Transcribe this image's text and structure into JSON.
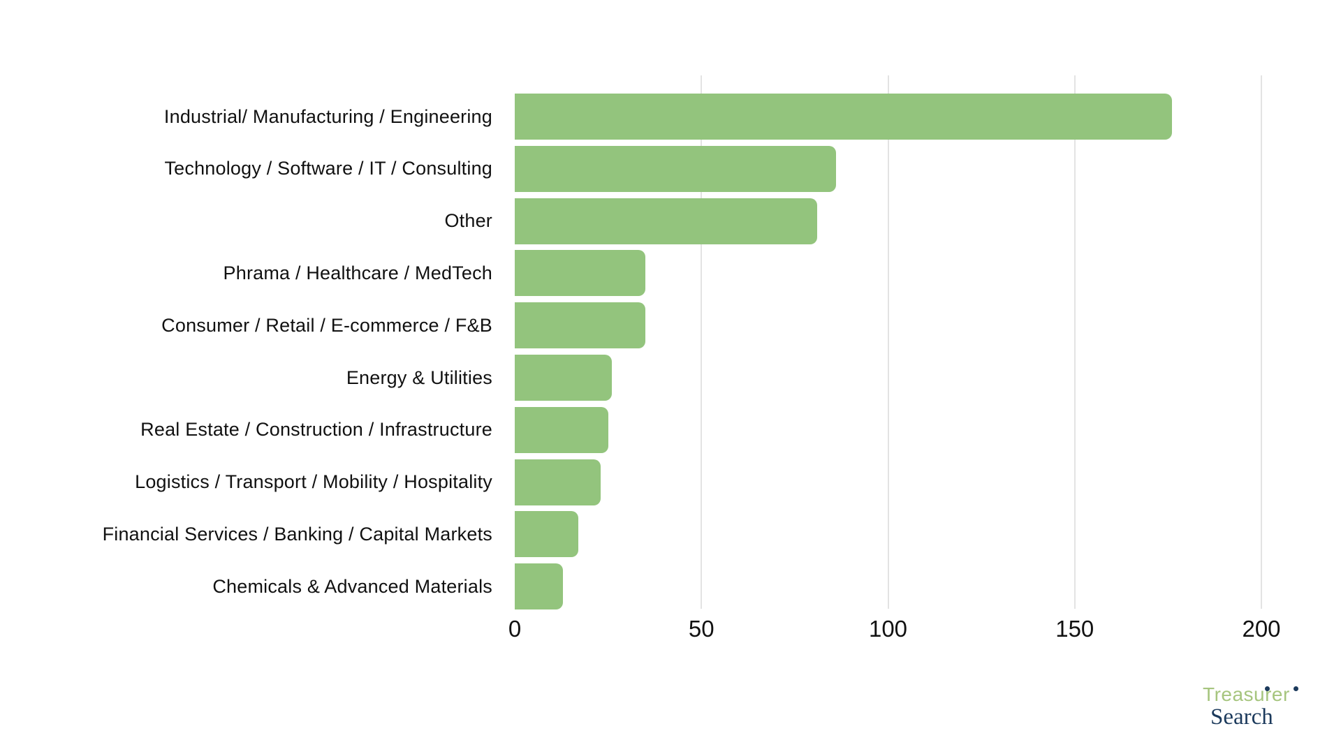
{
  "chart_data": {
    "type": "bar",
    "orientation": "horizontal",
    "title": "",
    "xlabel": "",
    "ylabel": "",
    "categories": [
      "Industrial/ Manufacturing / Engineering",
      "Technology / Software / IT / Consulting",
      "Other",
      "Phrama / Healthcare / MedTech",
      "Consumer / Retail / E-commerce / F&B",
      "Energy & Utilities",
      "Real Estate / Construction / Infrastructure",
      "Logistics / Transport / Mobility / Hospitality",
      "Financial Services / Banking / Capital Markets",
      "Chemicals & Advanced Materials"
    ],
    "values": [
      176,
      86,
      81,
      35,
      35,
      26,
      25,
      23,
      17,
      13
    ],
    "xlim": [
      0,
      200
    ],
    "x_ticks": [
      0,
      50,
      100,
      150,
      200
    ],
    "grid": "vertical-only",
    "legend": "none",
    "bar_color": "#93c47d",
    "gridline_color": "#e3e3e3",
    "text_color": "#111111"
  },
  "branding": {
    "line1": "Treasurer",
    "line2": "Search",
    "green": "#a6c57e",
    "navy": "#1c3a5c"
  }
}
